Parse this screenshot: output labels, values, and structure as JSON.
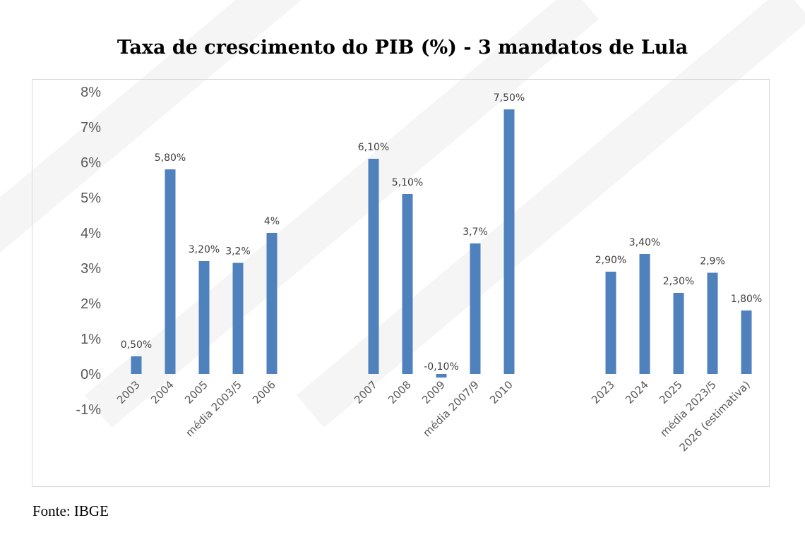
{
  "chart_data": {
    "type": "bar",
    "title": "Taxa de crescimento do PIB (%) - 3 mandatos de Lula",
    "xlabel": "",
    "ylabel": "",
    "ylim": [
      -1,
      8
    ],
    "yticks": [
      "-1%",
      "0%",
      "1%",
      "2%",
      "3%",
      "4%",
      "5%",
      "6%",
      "7%",
      "8%"
    ],
    "grid": false,
    "color": "#4f81bd",
    "categories": [
      "2003",
      "2004",
      "2005",
      "média 2003/5",
      "2006",
      "",
      "",
      "2007",
      "2008",
      "2009",
      "média 2007/9",
      "2010",
      "",
      "",
      "2023",
      "2024",
      "2025",
      "média 2023/5",
      "2026 (estimativa)"
    ],
    "values": [
      0.5,
      5.8,
      3.2,
      3.15,
      4.0,
      null,
      null,
      6.1,
      5.1,
      -0.1,
      3.7,
      7.5,
      null,
      null,
      2.9,
      3.4,
      2.3,
      2.87,
      1.8
    ],
    "data_labels": [
      "0,50%",
      "5,80%",
      "3,20%",
      "3,2%",
      "4%",
      "",
      "",
      "6,10%",
      "5,10%",
      "-0,10%",
      "3,7%",
      "7,50%",
      "",
      "",
      "2,90%",
      "3,40%",
      "2,30%",
      "2,9%",
      "1,80%"
    ]
  },
  "source": "Fonte: IBGE"
}
